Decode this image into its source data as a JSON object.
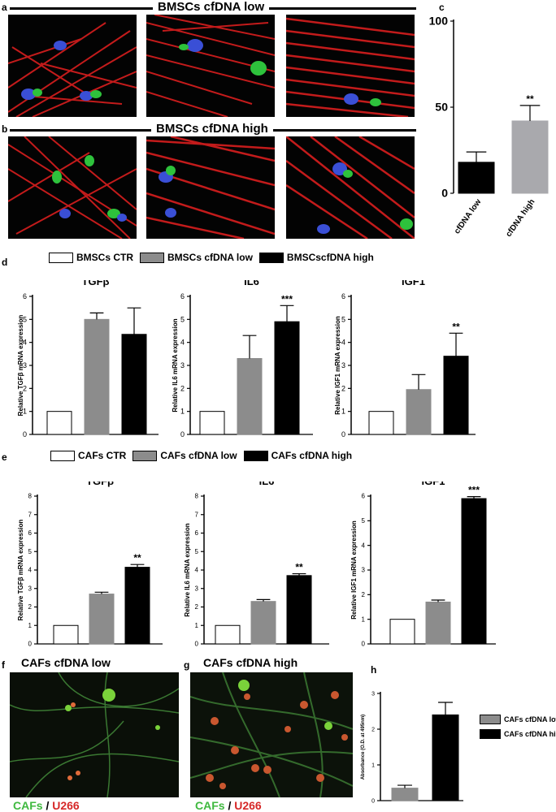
{
  "panels": {
    "a": {
      "letter": "a",
      "title": "BMSCs cfDNA low"
    },
    "b": {
      "letter": "b",
      "title": "BMSCs cfDNA high"
    },
    "c": {
      "letter": "c"
    },
    "d": {
      "letter": "d"
    },
    "e": {
      "letter": "e"
    },
    "f": {
      "letter": "f",
      "title": "CAFs cfDNA low"
    },
    "g": {
      "letter": "g",
      "title": "CAFs cfDNA high"
    },
    "h": {
      "letter": "h"
    }
  },
  "captions": {
    "cafs": "CAFs",
    "slash": " / ",
    "u266": "U266"
  },
  "legend_d": [
    {
      "label": "BMSCs CTR",
      "color": "#ffffff"
    },
    {
      "label": "BMSCs cfDNA low",
      "color": "#8c8c8c"
    },
    {
      "label": "BMSCscfDNA high",
      "color": "#000000"
    }
  ],
  "legend_e": [
    {
      "label": "CAFs CTR",
      "color": "#ffffff"
    },
    {
      "label": "CAFs cfDNA low",
      "color": "#8c8c8c"
    },
    {
      "label": "CAFs cfDNA high",
      "color": "#000000"
    }
  ],
  "legend_h": [
    {
      "label": "CAFs cfDNA low",
      "color": "#8c8c8c"
    },
    {
      "label": "CAFs cfDNA high",
      "color": "#000000"
    }
  ],
  "colors": {
    "ctr": "#ffffff",
    "low": "#8c8c8c",
    "high": "#000000",
    "low_c": "#a9a9ad"
  },
  "chart_data": [
    {
      "id": "c",
      "type": "bar",
      "categories": [
        "cfDNA low",
        "cfDNA high"
      ],
      "values": [
        18,
        42
      ],
      "errors": [
        6,
        9
      ],
      "sig": [
        "",
        "**"
      ],
      "ylim": [
        0,
        100
      ],
      "yticks": [
        0,
        50,
        100
      ],
      "ylabel": "",
      "title": ""
    },
    {
      "id": "d1",
      "type": "bar",
      "title": "TGFβ",
      "ylabel": "Relative TGFβ mRNA expression",
      "values": [
        1,
        5.0,
        4.35
      ],
      "errors": [
        0,
        0.28,
        1.15
      ],
      "sig": [
        "",
        "",
        ""
      ],
      "ylim": [
        0,
        6
      ],
      "yticks": [
        0,
        1,
        2,
        3,
        4,
        5,
        6
      ]
    },
    {
      "id": "d2",
      "type": "bar",
      "title": "IL6",
      "ylabel": "Relative IL6 mRNA expression",
      "values": [
        1,
        3.3,
        4.9
      ],
      "errors": [
        0,
        1.0,
        0.7
      ],
      "sig": [
        "",
        "",
        "***"
      ],
      "ylim": [
        0,
        6
      ],
      "yticks": [
        0,
        1,
        2,
        3,
        4,
        5,
        6
      ]
    },
    {
      "id": "d3",
      "type": "bar",
      "title": "IGF1",
      "ylabel": "Relative IGF1 mRNA expression",
      "values": [
        1,
        1.95,
        3.4
      ],
      "errors": [
        0,
        0.65,
        1.0
      ],
      "sig": [
        "",
        "",
        "**"
      ],
      "ylim": [
        0,
        6
      ],
      "yticks": [
        0,
        1,
        2,
        3,
        4,
        5,
        6
      ]
    },
    {
      "id": "e1",
      "type": "bar",
      "title": "TGFβ",
      "ylabel": "Relative TGFβ mRNA expression",
      "values": [
        1,
        2.7,
        4.15
      ],
      "errors": [
        0,
        0.1,
        0.15
      ],
      "sig": [
        "",
        "",
        "**"
      ],
      "ylim": [
        0,
        8
      ],
      "yticks": [
        0,
        1,
        2,
        3,
        4,
        5,
        6,
        7,
        8
      ]
    },
    {
      "id": "e2",
      "type": "bar",
      "title": "IL6",
      "ylabel": "Relative IL6 mRNA expression",
      "values": [
        1,
        2.3,
        3.7
      ],
      "errors": [
        0,
        0.1,
        0.1
      ],
      "sig": [
        "",
        "",
        "**"
      ],
      "ylim": [
        0,
        8
      ],
      "yticks": [
        0,
        1,
        2,
        3,
        4,
        5,
        6,
        7,
        8
      ]
    },
    {
      "id": "e3",
      "type": "bar",
      "title": "IGF1",
      "ylabel": "Relative IGF1 mRNA expression",
      "values": [
        1,
        1.7,
        5.9
      ],
      "errors": [
        0,
        0.08,
        0.08
      ],
      "sig": [
        "",
        "",
        "***"
      ],
      "ylim": [
        0,
        6
      ],
      "yticks": [
        0,
        1,
        2,
        3,
        4,
        5,
        6
      ]
    },
    {
      "id": "h",
      "type": "bar",
      "title": "",
      "ylabel": "Absorbance (O.D. at 495nm)",
      "values": [
        0.35,
        2.4
      ],
      "errors": [
        0.08,
        0.35
      ],
      "sig": [
        "",
        ""
      ],
      "ylim": [
        0,
        3
      ],
      "yticks": [
        0,
        1,
        2,
        3
      ]
    }
  ]
}
